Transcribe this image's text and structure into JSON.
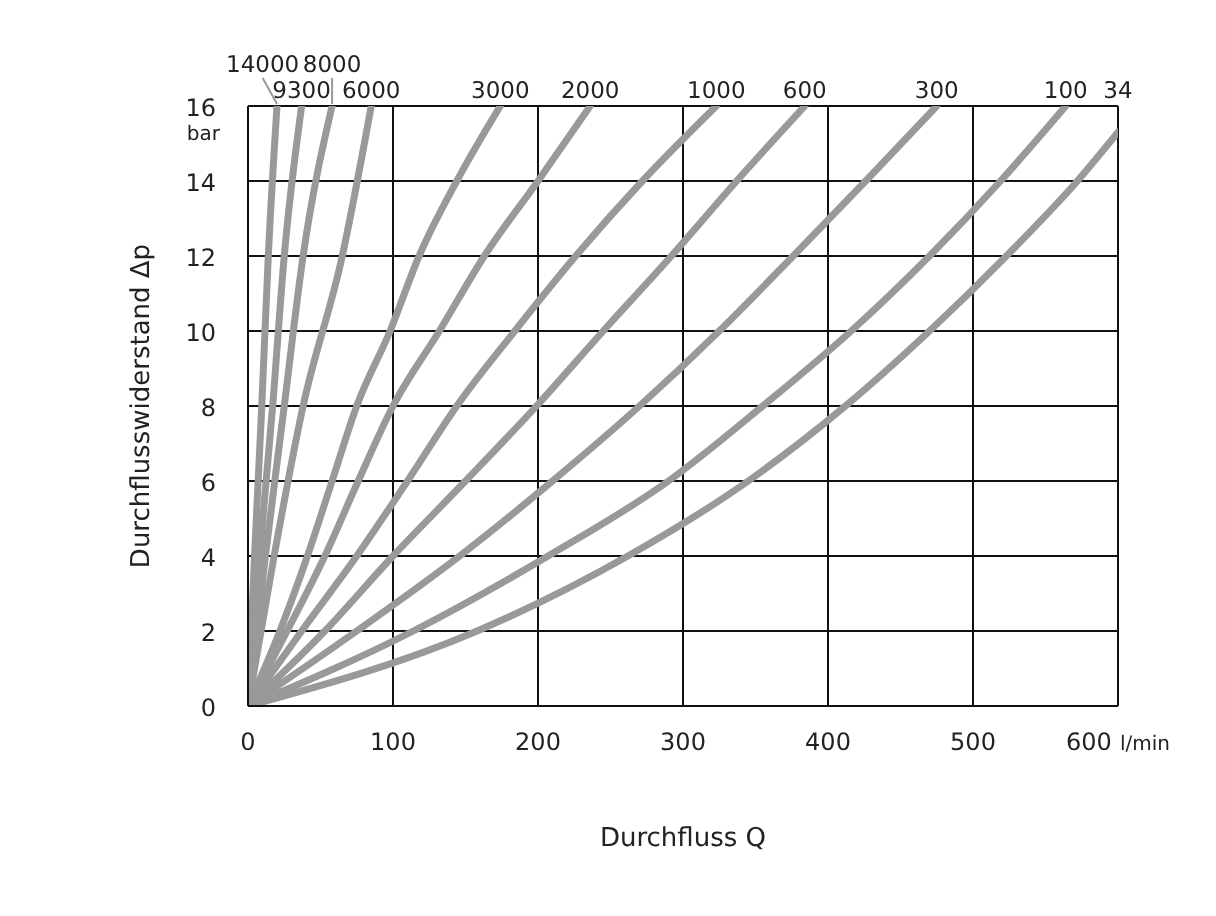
{
  "chart_data": {
    "type": "line",
    "xlabel": "Durchfluss Q",
    "ylabel": "Durchflusswiderstand  Δp",
    "xlim": [
      0,
      600
    ],
    "ylim": [
      0,
      16
    ],
    "xticks": [
      0,
      100,
      200,
      300,
      400,
      500,
      {
        "value": 600,
        "label": "600 l/min"
      }
    ],
    "yticks": [
      0,
      2,
      4,
      6,
      8,
      10,
      12,
      14,
      {
        "value": 16,
        "label": "16 bar"
      }
    ],
    "grid": true,
    "legend": false,
    "marker": "none",
    "line_style": "solid",
    "series": [
      {
        "name": "14000",
        "color": "#999999",
        "x": [
          0,
          4.5,
          9.5,
          14,
          20
        ],
        "values": [
          0,
          4,
          8,
          12,
          16
        ]
      },
      {
        "name": "9300",
        "color": "#999999",
        "x": [
          0,
          8,
          17,
          25,
          37
        ],
        "values": [
          0,
          4,
          8,
          12,
          16
        ]
      },
      {
        "name": "8000",
        "color": "#999999",
        "x": [
          0,
          12,
          25,
          38,
          58
        ],
        "values": [
          0,
          4,
          8,
          12,
          16
        ]
      },
      {
        "name": "6000",
        "color": "#999999",
        "x": [
          0,
          18,
          38,
          65,
          85
        ],
        "values": [
          0,
          4,
          8,
          12,
          16
        ]
      },
      {
        "name": "3000",
        "color": "#999999",
        "x": [
          0,
          22,
          41,
          58,
          75,
          98,
          118,
          144,
          174
        ],
        "values": [
          0,
          2,
          4,
          6,
          8,
          10,
          12,
          14,
          16
        ]
      },
      {
        "name": "2000",
        "color": "#999999",
        "x": [
          0,
          27,
          53,
          76,
          100,
          132,
          163,
          200,
          236
        ],
        "values": [
          0,
          2,
          4,
          6,
          8,
          10,
          12,
          14,
          16
        ]
      },
      {
        "name": "1000",
        "color": "#999999",
        "x": [
          0,
          37,
          75,
          110,
          144,
          184,
          226,
          272,
          323
        ],
        "values": [
          0,
          2,
          4,
          6,
          8,
          10,
          12,
          14,
          16
        ]
      },
      {
        "name": "600",
        "color": "#999999",
        "x": [
          0,
          53,
          100,
          150,
          199,
          245,
          292,
          337,
          384
        ],
        "values": [
          0,
          2,
          4,
          6,
          8,
          10,
          12,
          14,
          16
        ]
      },
      {
        "name": "300",
        "color": "#999999",
        "x": [
          0,
          75,
          146,
          210,
          270,
          325,
          376,
          426,
          475
        ],
        "values": [
          0,
          2,
          4,
          6,
          8,
          10,
          12,
          14,
          16
        ]
      },
      {
        "name": "100",
        "color": "#999999",
        "x": [
          0,
          114,
          207,
          290,
          355,
          416,
          470,
          519,
          564
        ],
        "values": [
          0,
          2,
          4,
          6,
          8,
          10,
          12,
          14,
          16
        ]
      },
      {
        "name": "34",
        "color": "#999999",
        "x": [
          0,
          158,
          262,
          345,
          412,
          470,
          523,
          572,
          600
        ],
        "values": [
          0,
          2,
          4,
          6,
          8,
          10,
          12,
          14,
          15.3
        ]
      }
    ]
  }
}
